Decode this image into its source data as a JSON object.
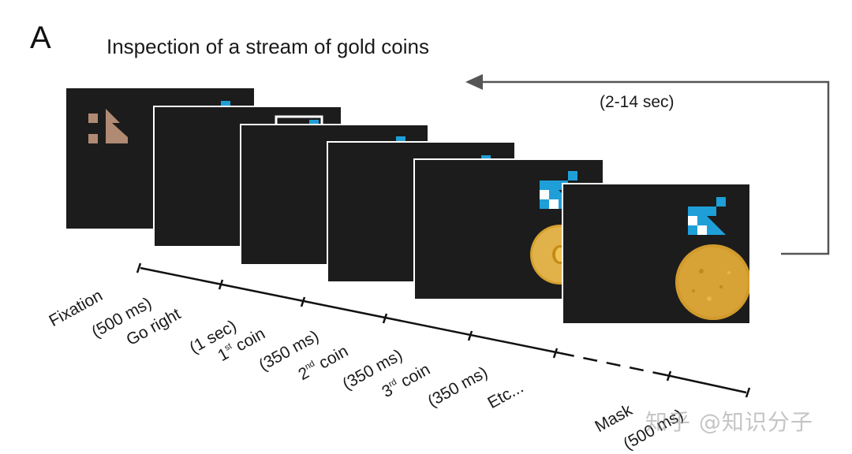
{
  "panel_label": "A",
  "title": "Inspection of a stream of gold coins",
  "loop_label": "(2-14 sec)",
  "timeline": {
    "labels": [
      {
        "id": "fixation",
        "text": "Fixation",
        "sup": "",
        "rest": ""
      },
      {
        "id": "fixation-dur",
        "text": "(500 ms)",
        "sup": "",
        "rest": ""
      },
      {
        "id": "go-right",
        "text": "Go right",
        "sup": "",
        "rest": ""
      },
      {
        "id": "go-right-dur",
        "text": "(1 sec)",
        "sup": "",
        "rest": ""
      },
      {
        "id": "coin-1",
        "text": "1",
        "sup": "st",
        "rest": " coin"
      },
      {
        "id": "coin-1-dur",
        "text": "(350 ms)",
        "sup": "",
        "rest": ""
      },
      {
        "id": "coin-2",
        "text": "2",
        "sup": "nd",
        "rest": " coin"
      },
      {
        "id": "coin-2-dur",
        "text": "(350 ms)",
        "sup": "",
        "rest": ""
      },
      {
        "id": "coin-3",
        "text": "3",
        "sup": "rd",
        "rest": " coin"
      },
      {
        "id": "coin-3-dur",
        "text": "(350 ms)",
        "sup": "",
        "rest": ""
      },
      {
        "id": "etc",
        "text": "Etc...",
        "sup": "",
        "rest": ""
      },
      {
        "id": "mask",
        "text": "Mask",
        "sup": "",
        "rest": ""
      },
      {
        "id": "mask-dur",
        "text": "(500 ms)",
        "sup": "",
        "rest": ""
      }
    ]
  },
  "watermark": "知乎 @知识分子",
  "colors": {
    "screen": "#1c1c1c",
    "logo_blue": "#1f9fd8",
    "logo_white": "#ffffff",
    "shape_tan": "#b08a73",
    "cross_red": "#c8302c",
    "coin_gold": "#d9a12a",
    "arrow_gray": "#555555"
  }
}
